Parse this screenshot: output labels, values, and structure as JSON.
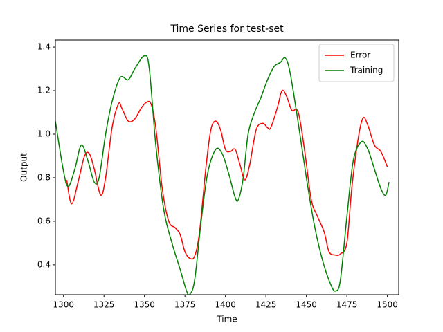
{
  "chart_data": {
    "type": "line",
    "title": "Time Series for test-set",
    "xlabel": "Time",
    "ylabel": "Output",
    "xlim": [
      1295,
      1507
    ],
    "ylim": [
      0.263,
      1.432
    ],
    "xticks": [
      1300,
      1325,
      1350,
      1375,
      1400,
      1425,
      1450,
      1475,
      1500
    ],
    "yticks": [
      0.4,
      0.6,
      0.8,
      {
        "value": 1,
        "label": "1.0"
      },
      1.2,
      1.4
    ],
    "legend": "upper right",
    "series": [
      {
        "name": "Error",
        "color": "#ff0000",
        "x": [
          1302,
          1305,
          1309,
          1313,
          1316,
          1319,
          1323,
          1326,
          1330,
          1334,
          1336,
          1340,
          1344,
          1348,
          1351,
          1354,
          1357,
          1361,
          1365,
          1369,
          1372,
          1375,
          1378,
          1381,
          1384,
          1388,
          1391,
          1394,
          1397,
          1400,
          1403,
          1406,
          1409,
          1412,
          1415,
          1419,
          1423,
          1426,
          1428,
          1432,
          1435,
          1438,
          1441,
          1445,
          1449,
          1453,
          1457,
          1461,
          1464,
          1468,
          1471,
          1475,
          1478,
          1482,
          1485,
          1488,
          1492,
          1496,
          1500
        ],
        "values": [
          0.79,
          0.68,
          0.78,
          0.9,
          0.91,
          0.84,
          0.72,
          0.8,
          1.03,
          1.14,
          1.12,
          1.06,
          1.07,
          1.12,
          1.145,
          1.14,
          1.03,
          0.75,
          0.6,
          0.57,
          0.54,
          0.46,
          0.43,
          0.44,
          0.55,
          0.85,
          1.02,
          1.06,
          1.02,
          0.93,
          0.92,
          0.93,
          0.86,
          0.79,
          0.86,
          1.02,
          1.05,
          1.03,
          1.03,
          1.12,
          1.2,
          1.17,
          1.11,
          1.1,
          0.92,
          0.7,
          0.62,
          0.55,
          0.46,
          0.445,
          0.45,
          0.5,
          0.75,
          0.98,
          1.075,
          1.04,
          0.95,
          0.92,
          0.85
        ]
      },
      {
        "name": "Training",
        "color": "#008000",
        "x": [
          1295,
          1300,
          1303,
          1307,
          1311,
          1315,
          1319,
          1322,
          1326,
          1330,
          1335,
          1340,
          1344,
          1350,
          1353,
          1357,
          1362,
          1367,
          1372,
          1376,
          1378,
          1381,
          1385,
          1389,
          1394,
          1398,
          1402,
          1406,
          1408,
          1411,
          1414,
          1418,
          1422,
          1426,
          1430,
          1434,
          1437,
          1440,
          1445,
          1450,
          1455,
          1460,
          1465,
          1468,
          1471,
          1475,
          1479,
          1484,
          1488,
          1492,
          1496,
          1499,
          1501
        ],
        "values": [
          1.06,
          0.83,
          0.76,
          0.84,
          0.95,
          0.88,
          0.78,
          0.8,
          1.0,
          1.15,
          1.26,
          1.25,
          1.3,
          1.36,
          1.3,
          0.95,
          0.65,
          0.5,
          0.38,
          0.28,
          0.265,
          0.33,
          0.6,
          0.82,
          0.93,
          0.91,
          0.82,
          0.71,
          0.7,
          0.8,
          1.0,
          1.1,
          1.17,
          1.25,
          1.31,
          1.33,
          1.35,
          1.28,
          1.05,
          0.8,
          0.58,
          0.42,
          0.31,
          0.28,
          0.33,
          0.62,
          0.88,
          0.965,
          0.93,
          0.84,
          0.75,
          0.72,
          0.78
        ]
      }
    ]
  }
}
